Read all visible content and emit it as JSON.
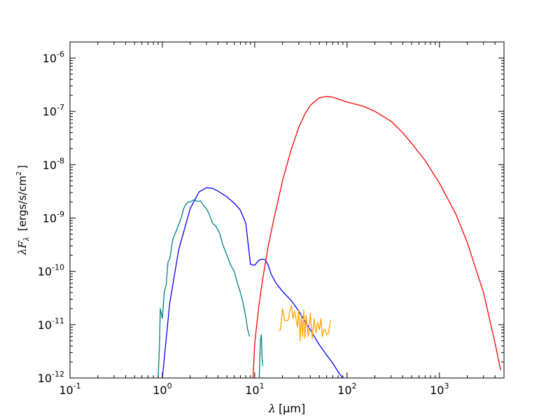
{
  "chart_data": {
    "type": "line",
    "title": "",
    "xlabel": {
      "symbol": "λ",
      "unit": "[μm]"
    },
    "ylabel": {
      "symbol": "λF",
      "subscript": "λ",
      "unit": "[ergs/s/cm",
      "unit_sup": "2",
      "unit_end": "]"
    },
    "xscale": "log",
    "yscale": "log",
    "xlim": [
      0.1,
      5000
    ],
    "ylim": [
      1e-12,
      2e-06
    ],
    "x_ticks": [
      {
        "value": 0.1,
        "base": "10",
        "exp": "-1"
      },
      {
        "value": 1,
        "base": "10",
        "exp": "0"
      },
      {
        "value": 10,
        "base": "10",
        "exp": "1"
      },
      {
        "value": 100,
        "base": "10",
        "exp": "2"
      },
      {
        "value": 1000,
        "base": "10",
        "exp": "3"
      }
    ],
    "y_ticks": [
      {
        "value": 1e-12,
        "base": "10",
        "exp": "-12"
      },
      {
        "value": 1e-11,
        "base": "10",
        "exp": "-11"
      },
      {
        "value": 1e-10,
        "base": "10",
        "exp": "-10"
      },
      {
        "value": 1e-09,
        "base": "10",
        "exp": "-9"
      },
      {
        "value": 1e-08,
        "base": "10",
        "exp": "-8"
      },
      {
        "value": 1e-07,
        "base": "10",
        "exp": "-7"
      },
      {
        "value": 1e-06,
        "base": "10",
        "exp": "-6"
      }
    ],
    "grid": false,
    "legend": "none",
    "series": [
      {
        "color": "#0000ff",
        "x": [
          1.0,
          1.2,
          1.5,
          2.0,
          2.5,
          3.0,
          3.5,
          4.0,
          5.0,
          6.0,
          7.0,
          8.0,
          9.0,
          10.0,
          11.0,
          12.0,
          13.0,
          14.0,
          15.0,
          17.0,
          20.0,
          25.0,
          30.0,
          40.0,
          50.0,
          60.0,
          70.0,
          80.0,
          90.0
        ],
        "y": [
          1e-12,
          2.5e-11,
          2.5e-10,
          1.5e-09,
          3.1e-09,
          3.7e-09,
          3.6e-09,
          3.2e-09,
          2.5e-09,
          1.9e-09,
          1.4e-09,
          8e-10,
          1.35e-10,
          1.3e-10,
          1.6e-10,
          1.7e-10,
          1.65e-10,
          1.3e-10,
          9e-11,
          6e-11,
          4.2e-11,
          2.8e-11,
          1.8e-11,
          8e-12,
          4.2e-12,
          2.7e-12,
          1.9e-12,
          1.3e-12,
          1e-12
        ]
      },
      {
        "color": "#ff0000",
        "x": [
          9.6,
          10,
          11,
          12,
          14,
          16,
          20,
          25,
          30,
          35,
          40,
          50,
          60,
          70,
          80,
          100,
          150,
          200,
          300,
          400,
          500,
          700,
          1000,
          1500,
          2000,
          3000,
          4000,
          4600
        ],
        "y": [
          1e-12,
          4.5e-12,
          2e-11,
          6e-11,
          3e-10,
          9e-10,
          5e-09,
          2e-08,
          5e-08,
          9e-08,
          1.3e-07,
          1.8e-07,
          1.9e-07,
          1.85e-07,
          1.7e-07,
          1.5e-07,
          1.25e-07,
          1e-07,
          6.5e-08,
          4e-08,
          2.5e-08,
          1.2e-08,
          4.5e-09,
          1.2e-09,
          3.5e-10,
          4e-11,
          4.5e-12,
          1.4e-12
        ]
      },
      {
        "color": "#008080",
        "x": [
          0.9,
          0.93,
          0.95,
          0.97,
          1.0,
          1.05,
          1.1,
          1.15,
          1.2,
          1.3,
          1.4,
          1.5,
          1.6,
          1.7,
          1.8,
          1.9,
          2.0,
          2.2,
          2.4,
          2.6,
          2.8,
          3.0,
          3.2,
          3.5,
          3.8,
          4.0,
          4.2,
          4.5,
          5.0,
          5.5,
          6.0,
          6.5,
          7.0,
          7.5,
          8.0,
          8.4,
          8.8
        ],
        "y": [
          1e-12,
          4e-12,
          2e-11,
          1.7e-11,
          1.3e-11,
          4.2e-11,
          5.5e-11,
          1.5e-10,
          1.7e-10,
          4e-10,
          5.5e-10,
          7.5e-10,
          1e-09,
          1.5e-09,
          1.8e-09,
          2e-09,
          2e-09,
          2.2e-09,
          2.05e-09,
          2.1e-09,
          1.7e-09,
          1.5e-09,
          1.2e-09,
          8e-10,
          7e-10,
          6e-10,
          5e-10,
          3.2e-10,
          2e-10,
          1.3e-10,
          1e-10,
          6e-11,
          4e-11,
          2.5e-11,
          1.4e-11,
          8e-12,
          6e-12
        ]
      },
      {
        "color": "#008080",
        "x": [
          11.2,
          11.5,
          11.8,
          12.0,
          12.2
        ],
        "y": [
          1e-12,
          5e-12,
          6.5e-12,
          2.5e-12,
          1.7e-12
        ]
      },
      {
        "color": "#ffa500",
        "x": [
          18,
          19,
          20,
          21,
          22,
          23,
          24,
          25,
          26,
          27,
          28,
          29,
          30,
          31,
          32,
          33,
          34,
          35,
          36,
          38,
          40,
          42,
          44,
          46,
          48,
          50,
          52,
          54,
          56,
          58,
          60,
          63,
          66
        ],
        "y": [
          8e-12,
          8e-12,
          2e-11,
          1.2e-11,
          1.2e-11,
          1.2e-11,
          1.8e-11,
          2.3e-11,
          1.3e-11,
          1.8e-11,
          1.3e-11,
          9e-12,
          1.9e-11,
          5e-12,
          1.5e-11,
          6e-12,
          1.9e-11,
          5.5e-12,
          1.5e-11,
          6e-12,
          1.6e-11,
          5.5e-12,
          1.3e-11,
          7e-12,
          1.1e-11,
          8e-12,
          1.3e-11,
          6e-12,
          8e-12,
          8e-12,
          6.5e-12,
          7e-12,
          1.2e-11
        ]
      }
    ]
  }
}
